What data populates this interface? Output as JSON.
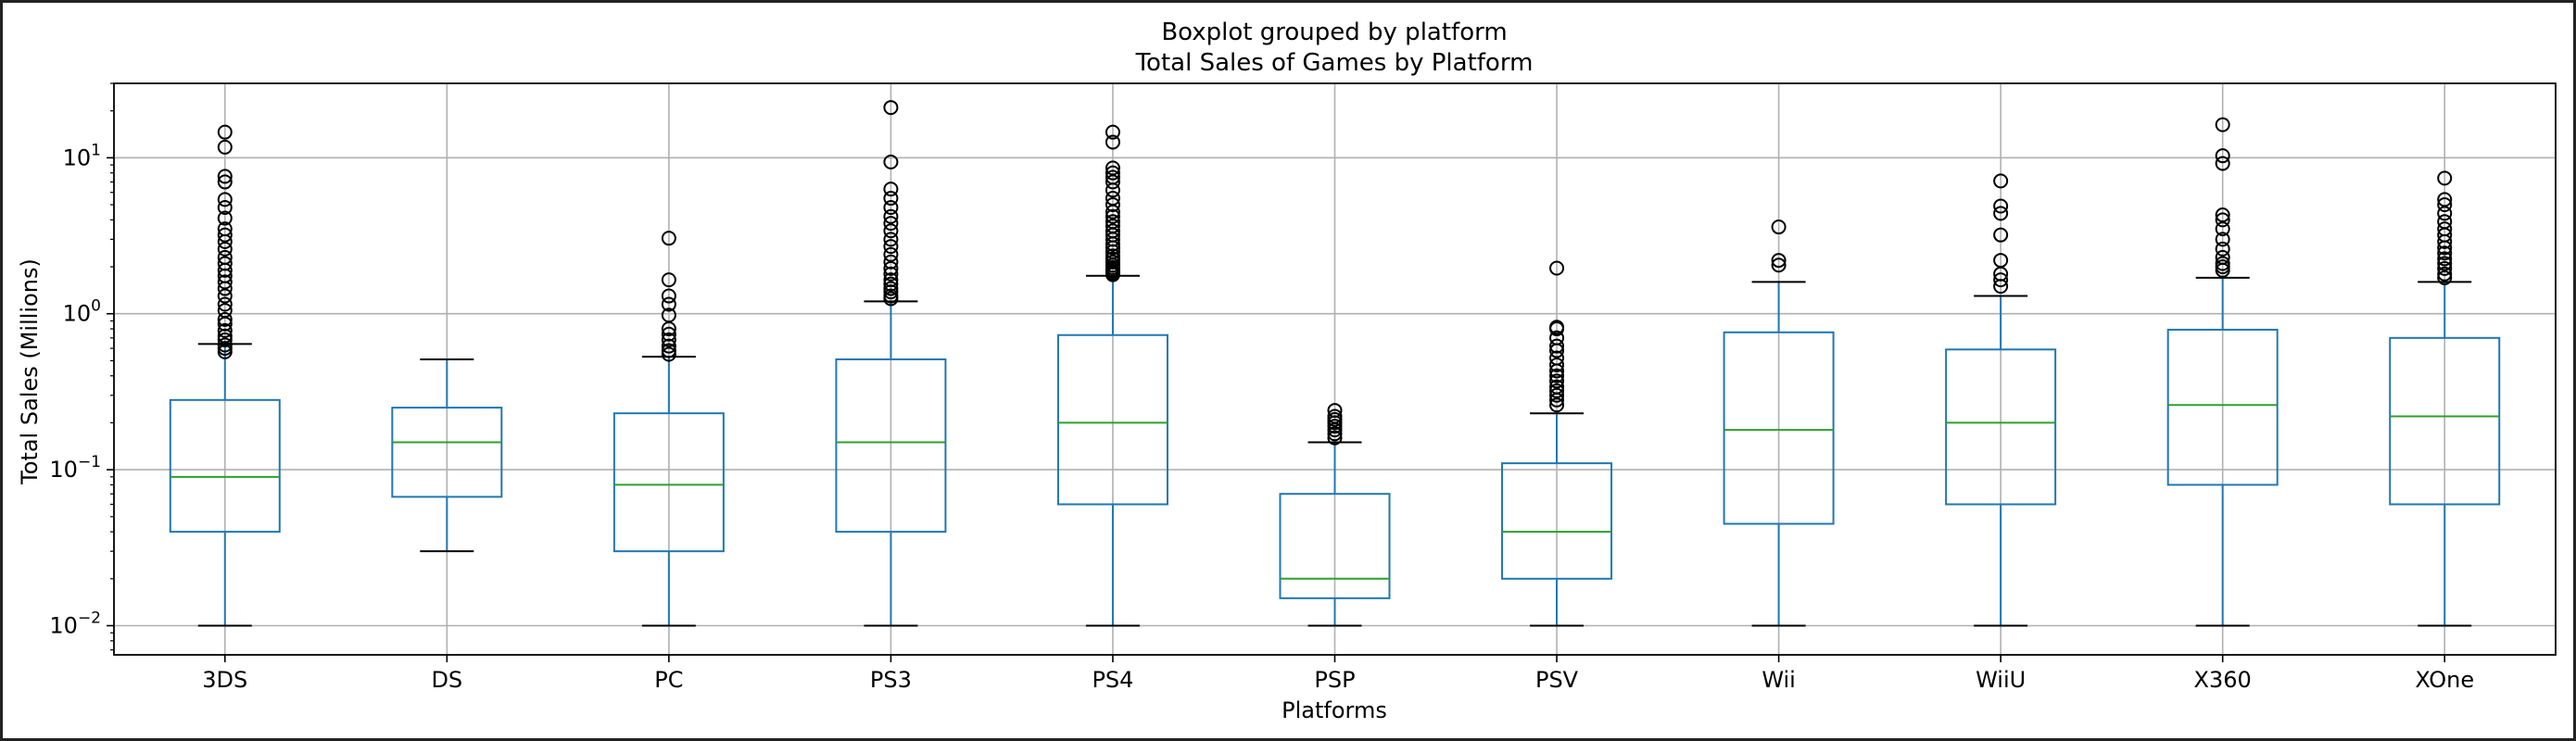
{
  "chart_data": {
    "type": "box",
    "suptitle": "Boxplot grouped by platform",
    "title": "Total Sales of Games by Platform",
    "xlabel": "Platforms",
    "ylabel": "Total Sales (Millions)",
    "yscale": "log",
    "ylim": [
      0.0065,
      30
    ],
    "yticks": [
      {
        "value": 0.01,
        "base": "10",
        "exp": "−2"
      },
      {
        "value": 0.1,
        "base": "10",
        "exp": "−1"
      },
      {
        "value": 1,
        "base": "10",
        "exp": "0"
      },
      {
        "value": 10,
        "base": "10",
        "exp": "1"
      }
    ],
    "grid": true,
    "colors": {
      "box": "#1f77b4",
      "median": "#2ca02c",
      "whisker_cap": "#000000",
      "flier": "#000000",
      "grid": "#b0b0b0"
    },
    "categories": [
      "3DS",
      "DS",
      "PC",
      "PS3",
      "PS4",
      "PSP",
      "PSV",
      "Wii",
      "WiiU",
      "X360",
      "XOne"
    ],
    "boxes": [
      {
        "platform": "3DS",
        "whislo": 0.01,
        "q1": 0.04,
        "median": 0.09,
        "q3": 0.28,
        "whishi": 0.64,
        "fliers": [
          0.57,
          0.6,
          0.63,
          0.68,
          0.72,
          0.78,
          0.86,
          0.92,
          1.05,
          1.15,
          1.3,
          1.45,
          1.6,
          1.75,
          1.9,
          2.1,
          2.3,
          2.6,
          2.9,
          3.2,
          3.5,
          4.1,
          4.8,
          5.4,
          7.0,
          7.6,
          11.7,
          14.6
        ]
      },
      {
        "platform": "DS",
        "whislo": 0.03,
        "q1": 0.067,
        "median": 0.15,
        "q3": 0.25,
        "whishi": 0.51,
        "fliers": []
      },
      {
        "platform": "PC",
        "whislo": 0.01,
        "q1": 0.03,
        "median": 0.08,
        "q3": 0.23,
        "whishi": 0.53,
        "fliers": [
          0.55,
          0.58,
          0.62,
          0.68,
          0.74,
          0.8,
          0.98,
          1.15,
          1.3,
          1.65,
          3.05
        ]
      },
      {
        "platform": "PS3",
        "whislo": 0.01,
        "q1": 0.04,
        "median": 0.15,
        "q3": 0.51,
        "whishi": 1.2,
        "fliers": [
          1.25,
          1.3,
          1.38,
          1.45,
          1.55,
          1.65,
          1.8,
          1.95,
          2.15,
          2.4,
          2.7,
          3.0,
          3.4,
          3.8,
          4.2,
          4.8,
          5.5,
          6.3,
          9.4,
          21.0
        ]
      },
      {
        "platform": "PS4",
        "whislo": 0.01,
        "q1": 0.06,
        "median": 0.2,
        "q3": 0.73,
        "whishi": 1.75,
        "fliers": [
          1.78,
          1.82,
          1.87,
          1.92,
          1.98,
          2.05,
          2.15,
          2.25,
          2.35,
          2.5,
          2.65,
          2.8,
          3.0,
          3.2,
          3.4,
          3.65,
          3.9,
          4.2,
          4.5,
          5.0,
          5.5,
          6.2,
          7.0,
          7.5,
          8.0,
          8.6,
          12.6,
          14.6
        ]
      },
      {
        "platform": "PSP",
        "whislo": 0.01,
        "q1": 0.015,
        "median": 0.02,
        "q3": 0.07,
        "whishi": 0.15,
        "fliers": [
          0.16,
          0.17,
          0.18,
          0.19,
          0.2,
          0.21,
          0.22,
          0.24
        ]
      },
      {
        "platform": "PSV",
        "whislo": 0.01,
        "q1": 0.02,
        "median": 0.04,
        "q3": 0.11,
        "whishi": 0.23,
        "fliers": [
          0.26,
          0.28,
          0.3,
          0.32,
          0.34,
          0.37,
          0.4,
          0.43,
          0.47,
          0.52,
          0.58,
          0.62,
          0.7,
          0.8,
          0.82,
          1.96
        ]
      },
      {
        "platform": "Wii",
        "whislo": 0.01,
        "q1": 0.045,
        "median": 0.18,
        "q3": 0.76,
        "whishi": 1.6,
        "fliers": [
          2.05,
          2.2,
          3.6
        ]
      },
      {
        "platform": "WiiU",
        "whislo": 0.01,
        "q1": 0.06,
        "median": 0.2,
        "q3": 0.59,
        "whishi": 1.3,
        "fliers": [
          1.5,
          1.65,
          1.8,
          2.2,
          3.2,
          4.4,
          4.9,
          7.1
        ]
      },
      {
        "platform": "X360",
        "whislo": 0.01,
        "q1": 0.08,
        "median": 0.26,
        "q3": 0.79,
        "whishi": 1.7,
        "fliers": [
          1.9,
          2.0,
          2.1,
          2.3,
          2.6,
          3.0,
          3.5,
          4.0,
          4.3,
          9.2,
          10.3,
          16.3
        ]
      },
      {
        "platform": "XOne",
        "whislo": 0.01,
        "q1": 0.06,
        "median": 0.22,
        "q3": 0.7,
        "whishi": 1.6,
        "fliers": [
          1.7,
          1.8,
          1.95,
          2.1,
          2.25,
          2.45,
          2.65,
          2.9,
          3.2,
          3.5,
          3.9,
          4.4,
          5.0,
          5.4,
          7.4
        ]
      }
    ]
  }
}
